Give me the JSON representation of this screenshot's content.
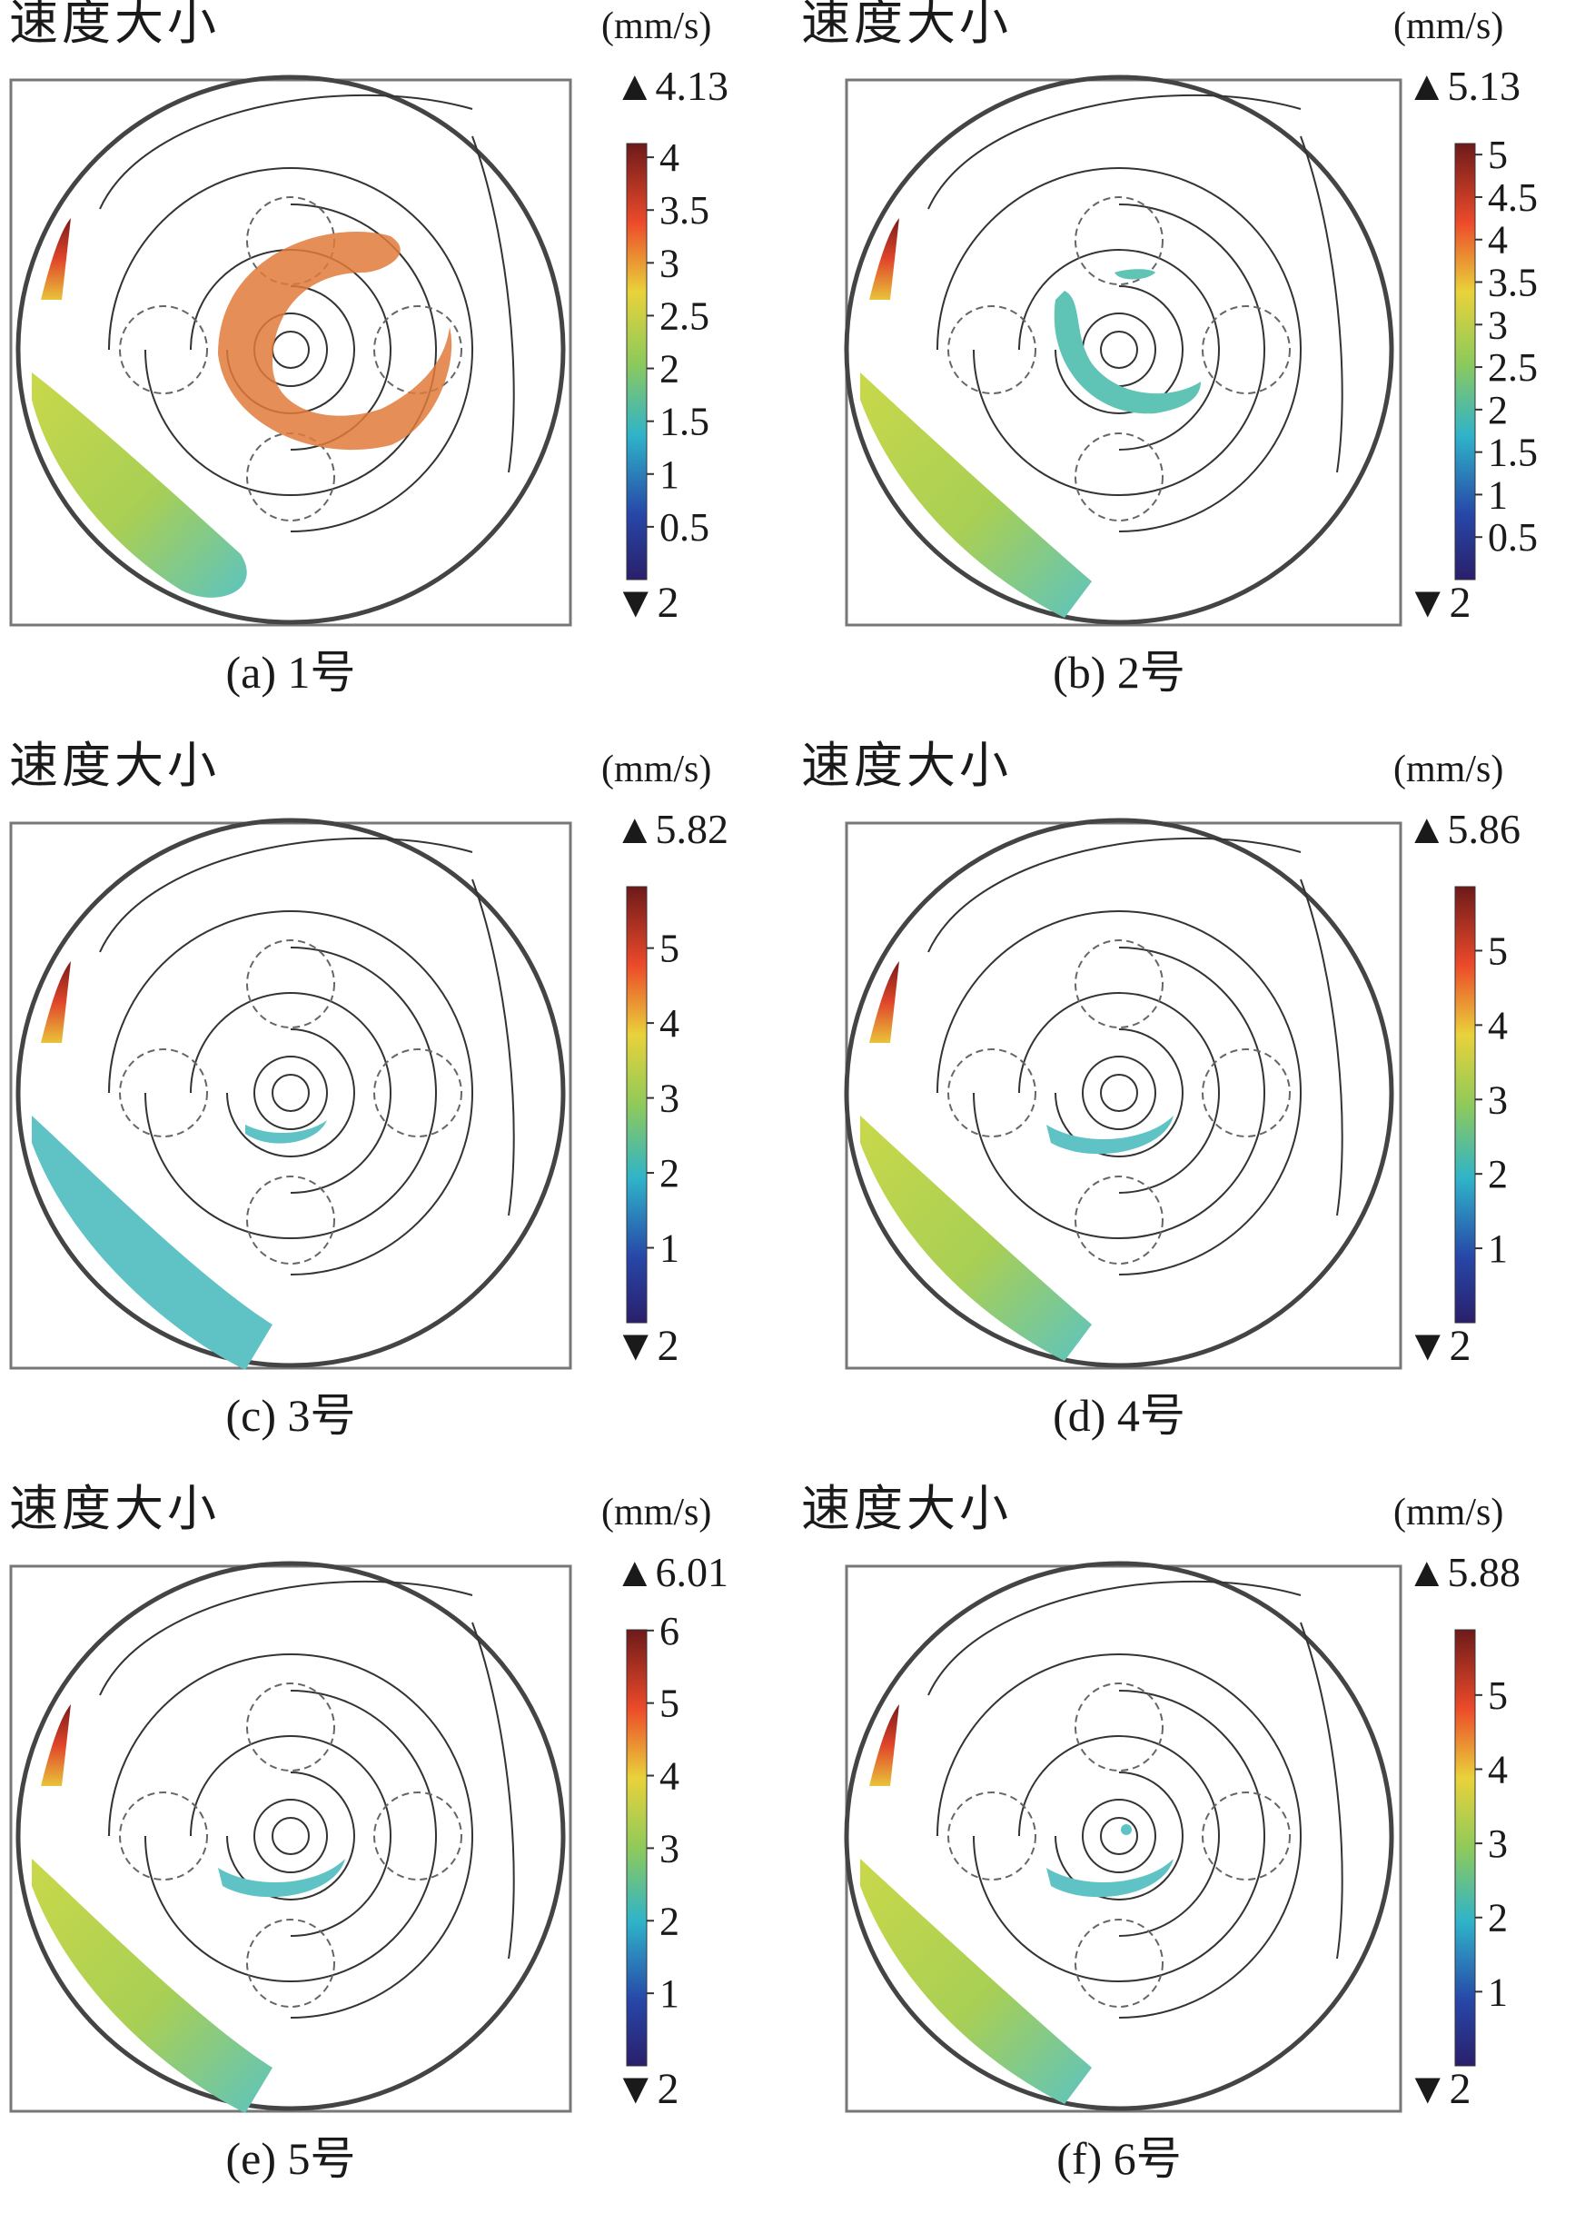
{
  "panels": [
    {
      "title": "速度大小",
      "unit": "(mm/s)",
      "max": "▲4.13",
      "min": "▼2",
      "caption": "(a) 1号",
      "ticks": [
        "4",
        "3.5",
        "3",
        "2.5",
        "2",
        "1.5",
        "1",
        "0.5"
      ],
      "cmax": 4.13
    },
    {
      "title": "速度大小",
      "unit": "(mm/s)",
      "max": "▲5.13",
      "min": "▼2",
      "caption": "(b) 2号",
      "ticks": [
        "5",
        "4.5",
        "4",
        "3.5",
        "3",
        "2.5",
        "2",
        "1.5",
        "1",
        "0.5"
      ],
      "cmax": 5.13
    },
    {
      "title": "速度大小",
      "unit": "(mm/s)",
      "max": "▲5.82",
      "min": "▼2",
      "caption": "(c) 3号",
      "ticks": [
        "5",
        "4",
        "3",
        "2",
        "1"
      ],
      "cmax": 5.82
    },
    {
      "title": "速度大小",
      "unit": "(mm/s)",
      "max": "▲5.86",
      "min": "▼2",
      "caption": "(d) 4号",
      "ticks": [
        "5",
        "4",
        "3",
        "2",
        "1"
      ],
      "cmax": 5.86
    },
    {
      "title": "速度大小",
      "unit": "(mm/s)",
      "max": "▲6.01",
      "min": "▼2",
      "caption": "(e) 5号",
      "ticks": [
        "6",
        "5",
        "4",
        "3",
        "2",
        "1"
      ],
      "cmax": 6.01
    },
    {
      "title": "速度大小",
      "unit": "(mm/s)",
      "max": "▲5.88",
      "min": "▼2",
      "caption": "(f) 6号",
      "ticks": [
        "5",
        "4",
        "3",
        "2",
        "1"
      ],
      "cmax": 5.88
    }
  ]
}
